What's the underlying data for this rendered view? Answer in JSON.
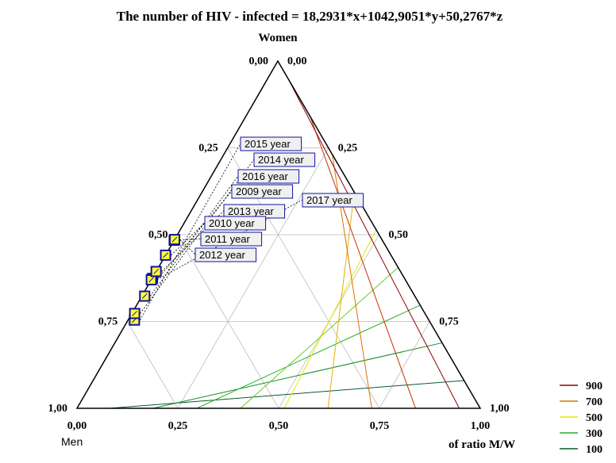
{
  "chart_data": {
    "type": "ternary-contour",
    "title": "The number of HIV - infected = 18,2931*x+1042,9051*y+50,2767*z",
    "formula": {
      "x": 18.2931,
      "y": 1042.9051,
      "z": 50.2767
    },
    "axes": {
      "top_label": "Women",
      "bottom_left_label": "Men",
      "bottom_right_label": "of ratio M/W"
    },
    "ticks": [
      "0,00",
      "0,25",
      "0,50",
      "0,75",
      "1,00"
    ],
    "contour_levels": [
      100,
      200,
      300,
      400,
      500,
      600,
      700,
      800,
      900
    ],
    "legend": [
      {
        "label": "900",
        "color": "#8b0000"
      },
      {
        "label": "700",
        "color": "#e07000"
      },
      {
        "label": "500",
        "color": "#e8e800"
      },
      {
        "label": "300",
        "color": "#22b022"
      },
      {
        "label": "100",
        "color": "#0a5a2a"
      }
    ],
    "points": [
      {
        "label": "2015 year",
        "women": 0.254,
        "men": 0.73
      },
      {
        "label": "2014 year",
        "women": 0.273,
        "men": 0.72
      },
      {
        "label": "2016 year",
        "women": 0.323,
        "men": 0.67
      },
      {
        "label": "2009 year",
        "women": 0.374,
        "men": 0.625
      },
      {
        "label": "2017 year",
        "women": 0.37,
        "men": 0.63
      },
      {
        "label": "2013 year",
        "women": 0.394,
        "men": 0.606
      },
      {
        "label": "2010 year",
        "women": 0.441,
        "men": 0.559
      },
      {
        "label": "2011 year",
        "women": 0.484,
        "men": 0.516
      },
      {
        "label": "2012 year",
        "women": 0.486,
        "men": 0.514
      }
    ]
  }
}
